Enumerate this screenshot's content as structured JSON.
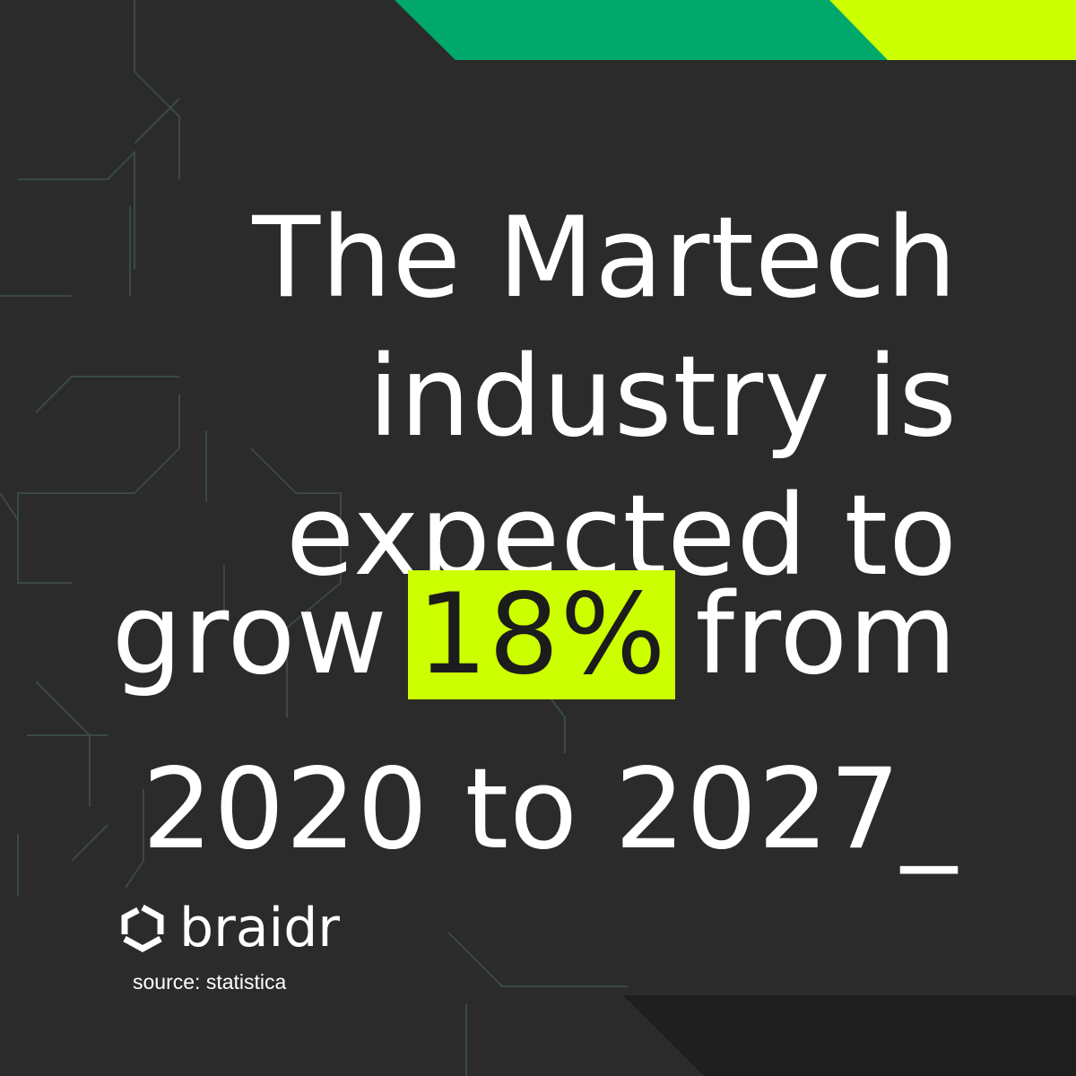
{
  "headline": {
    "line1": "The Martech",
    "line2": "industry is",
    "line3": "expected to",
    "line4_start": "grow",
    "highlight": "18%",
    "line4_end": "from",
    "line5": "2020 to 2027_"
  },
  "brand": {
    "name": "braidr"
  },
  "source": "source: statistica"
}
